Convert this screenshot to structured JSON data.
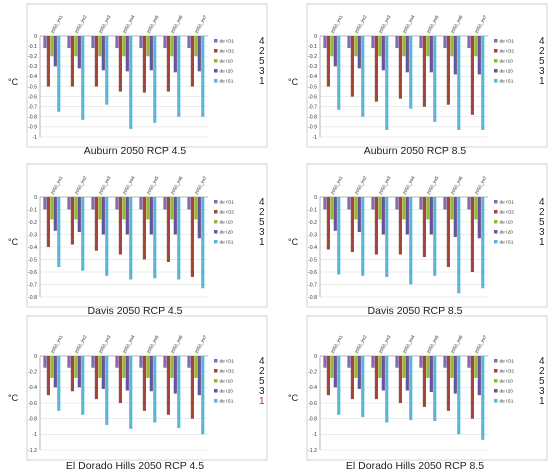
{
  "colors": {
    "de IO1": "#7e6fb4",
    "de IO2": "#a0463a",
    "de I10": "#9bb53b",
    "de I20": "#6a5495",
    "de IS1": "#5db5d8"
  },
  "legend_numbers": [
    {
      "text": "4",
      "red": false
    },
    {
      "text": "2",
      "red": false
    },
    {
      "text": "5",
      "red": false
    },
    {
      "text": "3",
      "red": false
    },
    {
      "text": "1",
      "red": false
    }
  ],
  "legend_numbers_panel5": [
    {
      "text": "4",
      "red": false
    },
    {
      "text": "2",
      "red": false
    },
    {
      "text": "5",
      "red": false
    },
    {
      "text": "3",
      "red": false
    },
    {
      "text": "1",
      "red": true
    }
  ],
  "chart_data": [
    {
      "type": "bar",
      "title": "Auburn 2050 RCP 4.5",
      "ylabel": "°C",
      "ylim": [
        -1,
        0
      ],
      "yticks": [
        "0",
        "-0.1",
        "-0.2",
        "-0.3",
        "-0.4",
        "-0.5",
        "-0.6",
        "-0.7",
        "-0.8",
        "-0.9",
        "-1"
      ],
      "categories": [
        "2050_int1",
        "2050_int2",
        "2050_int3",
        "2050_int4",
        "2050_int5",
        "2050_int6",
        "2050_int7"
      ],
      "series": [
        {
          "name": "de IO1",
          "values": [
            -0.12,
            -0.12,
            -0.12,
            -0.12,
            -0.12,
            -0.12,
            -0.12
          ]
        },
        {
          "name": "de IO2",
          "values": [
            -0.5,
            -0.5,
            -0.5,
            -0.55,
            -0.56,
            -0.55,
            -0.5
          ]
        },
        {
          "name": "de I10",
          "values": [
            -0.2,
            -0.2,
            -0.2,
            -0.2,
            -0.2,
            -0.2,
            -0.2
          ]
        },
        {
          "name": "de I20",
          "values": [
            -0.3,
            -0.32,
            -0.34,
            -0.35,
            -0.34,
            -0.36,
            -0.35
          ]
        },
        {
          "name": "de IS1",
          "values": [
            -0.75,
            -0.83,
            -0.68,
            -0.92,
            -0.86,
            -0.8,
            -0.8
          ]
        }
      ],
      "legend": "right"
    },
    {
      "type": "bar",
      "title": "Auburn 2050 RCP 8.5",
      "ylabel": "°C",
      "ylim": [
        -1,
        0
      ],
      "yticks": [
        "0",
        "-0.1",
        "-0.2",
        "-0.3",
        "-0.4",
        "-0.5",
        "-0.6",
        "-0.7",
        "-0.8",
        "-0.9",
        "-1"
      ],
      "categories": [
        "2050_int1",
        "2050_int2",
        "2050_int3",
        "2050_int4",
        "2050_int5",
        "2050_int6",
        "2050_int7"
      ],
      "series": [
        {
          "name": "de IO1",
          "values": [
            -0.12,
            -0.12,
            -0.12,
            -0.12,
            -0.12,
            -0.12,
            -0.12
          ]
        },
        {
          "name": "de IO2",
          "values": [
            -0.5,
            -0.6,
            -0.65,
            -0.62,
            -0.7,
            -0.68,
            -0.78
          ]
        },
        {
          "name": "de I10",
          "values": [
            -0.2,
            -0.2,
            -0.2,
            -0.2,
            -0.2,
            -0.2,
            -0.2
          ]
        },
        {
          "name": "de I20",
          "values": [
            -0.3,
            -0.32,
            -0.34,
            -0.36,
            -0.36,
            -0.38,
            -0.38
          ]
        },
        {
          "name": "de IS1",
          "values": [
            -0.73,
            -0.8,
            -0.93,
            -0.72,
            -0.85,
            -0.93,
            -0.93
          ]
        }
      ],
      "legend": "right"
    },
    {
      "type": "bar",
      "title": "Davis 2050 RCP 4.5",
      "ylabel": "°C",
      "ylim": [
        -0.8,
        0
      ],
      "yticks": [
        "0",
        "-0.1",
        "-0.2",
        "-0.3",
        "-0.4",
        "-0.5",
        "-0.6",
        "-0.7",
        "-0.8"
      ],
      "categories": [
        "2050_int1",
        "2050_int2",
        "2050_int3",
        "2050_int4",
        "2050_int5",
        "2050_int6",
        "2050_int7"
      ],
      "series": [
        {
          "name": "de IO1",
          "values": [
            -0.1,
            -0.1,
            -0.1,
            -0.1,
            -0.1,
            -0.1,
            -0.1
          ]
        },
        {
          "name": "de IO2",
          "values": [
            -0.4,
            -0.38,
            -0.43,
            -0.46,
            -0.5,
            -0.52,
            -0.64
          ]
        },
        {
          "name": "de I10",
          "values": [
            -0.18,
            -0.18,
            -0.18,
            -0.18,
            -0.18,
            -0.18,
            -0.18
          ]
        },
        {
          "name": "de I20",
          "values": [
            -0.27,
            -0.28,
            -0.3,
            -0.3,
            -0.3,
            -0.3,
            -0.33
          ]
        },
        {
          "name": "de IS1",
          "values": [
            -0.56,
            -0.59,
            -0.63,
            -0.66,
            -0.65,
            -0.66,
            -0.73
          ]
        }
      ],
      "legend": "right"
    },
    {
      "type": "bar",
      "title": "Davis 2050 RCP 8.5",
      "ylabel": "°C",
      "ylim": [
        -0.8,
        0
      ],
      "yticks": [
        "0",
        "-0.1",
        "-0.2",
        "-0.3",
        "-0.4",
        "-0.5",
        "-0.6",
        "-0.7",
        "-0.8"
      ],
      "categories": [
        "2050_int1",
        "2050_int2",
        "2050_int3",
        "2050_int4",
        "2050_int5",
        "2050_int6",
        "2050_int7"
      ],
      "series": [
        {
          "name": "de IO1",
          "values": [
            -0.1,
            -0.1,
            -0.1,
            -0.1,
            -0.1,
            -0.1,
            -0.1
          ]
        },
        {
          "name": "de IO2",
          "values": [
            -0.42,
            -0.44,
            -0.46,
            -0.46,
            -0.48,
            -0.56,
            -0.6
          ]
        },
        {
          "name": "de I10",
          "values": [
            -0.18,
            -0.18,
            -0.18,
            -0.18,
            -0.18,
            -0.18,
            -0.18
          ]
        },
        {
          "name": "de I20",
          "values": [
            -0.27,
            -0.28,
            -0.3,
            -0.3,
            -0.3,
            -0.32,
            -0.33
          ]
        },
        {
          "name": "de IS1",
          "values": [
            -0.62,
            -0.63,
            -0.64,
            -0.7,
            -0.63,
            -0.77,
            -0.73
          ]
        }
      ],
      "legend": "right"
    },
    {
      "type": "bar",
      "title": "El Dorado Hills 2050 RCP 4.5",
      "ylabel": "°C",
      "ylim": [
        -1.2,
        0
      ],
      "yticks": [
        "0",
        "-0.2",
        "-0.4",
        "-0.6",
        "-0.8",
        "-1",
        "-1.2"
      ],
      "categories": [
        "2050_int1",
        "2050_int2",
        "2050_int3",
        "2050_int4",
        "2050_int5",
        "2050_int6",
        "2050_int7"
      ],
      "series": [
        {
          "name": "de IO1",
          "values": [
            -0.15,
            -0.15,
            -0.15,
            -0.15,
            -0.15,
            -0.15,
            -0.15
          ]
        },
        {
          "name": "de IO2",
          "values": [
            -0.5,
            -0.45,
            -0.55,
            -0.6,
            -0.7,
            -0.75,
            -0.8
          ]
        },
        {
          "name": "de I10",
          "values": [
            -0.28,
            -0.28,
            -0.28,
            -0.28,
            -0.28,
            -0.28,
            -0.28
          ]
        },
        {
          "name": "de I20",
          "values": [
            -0.4,
            -0.4,
            -0.42,
            -0.44,
            -0.45,
            -0.48,
            -0.5
          ]
        },
        {
          "name": "de IS1",
          "values": [
            -0.7,
            -0.75,
            -0.88,
            -0.93,
            -0.85,
            -0.92,
            -1.0
          ]
        }
      ],
      "legend": "right"
    },
    {
      "type": "bar",
      "title": "El Dorado Hills 2050 RCP 8.5",
      "ylabel": "°C",
      "ylim": [
        -1.2,
        0
      ],
      "yticks": [
        "0",
        "-0.2",
        "-0.4",
        "-0.6",
        "-0.8",
        "-1",
        "-1.2"
      ],
      "categories": [
        "2050_int1",
        "2050_int2",
        "2050_int3",
        "2050_int4",
        "2050_int5",
        "2050_int6",
        "2050_int7"
      ],
      "series": [
        {
          "name": "de IO1",
          "values": [
            -0.15,
            -0.15,
            -0.15,
            -0.15,
            -0.15,
            -0.15,
            -0.15
          ]
        },
        {
          "name": "de IO2",
          "values": [
            -0.5,
            -0.55,
            -0.55,
            -0.6,
            -0.65,
            -0.7,
            -0.8
          ]
        },
        {
          "name": "de I10",
          "values": [
            -0.28,
            -0.28,
            -0.28,
            -0.28,
            -0.28,
            -0.28,
            -0.28
          ]
        },
        {
          "name": "de I20",
          "values": [
            -0.4,
            -0.42,
            -0.44,
            -0.44,
            -0.46,
            -0.48,
            -0.5
          ]
        },
        {
          "name": "de IS1",
          "values": [
            -0.75,
            -0.78,
            -0.85,
            -0.82,
            -0.83,
            -1.0,
            -1.07
          ]
        }
      ],
      "legend": "right"
    }
  ]
}
